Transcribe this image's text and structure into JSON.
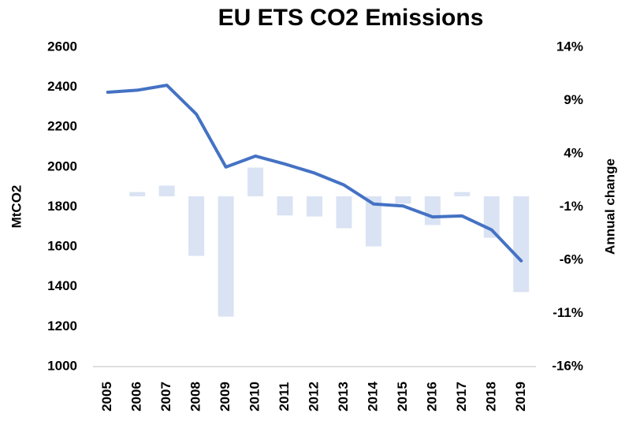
{
  "chart_data": {
    "type": "bar_line",
    "title": "EU ETS CO2 Emissions",
    "ylabel": "MtCO2",
    "y2label": "Annual change",
    "categories": [
      "2005",
      "2006",
      "2007",
      "2008",
      "2009",
      "2010",
      "2011",
      "2012",
      "2013",
      "2014",
      "2015",
      "2016",
      "2017",
      "2018",
      "2019"
    ],
    "series": [
      {
        "name": "Annual change",
        "type": "bar",
        "axis": "y2",
        "color": "#dae3f3",
        "values": [
          null,
          0.4,
          1.0,
          -5.6,
          -11.3,
          2.7,
          -1.8,
          -1.9,
          -3.0,
          -4.7,
          -0.7,
          -2.7,
          0.4,
          -3.9,
          -9.0
        ]
      },
      {
        "name": "MtCO2",
        "type": "line",
        "color": "#4472c4",
        "values": [
          2375,
          2385,
          2410,
          2265,
          2000,
          2055,
          2015,
          1970,
          1910,
          1815,
          1805,
          1750,
          1755,
          1685,
          1530
        ]
      }
    ],
    "ylim": [
      1000,
      2600
    ],
    "yticks": [
      1000,
      1200,
      1400,
      1600,
      1800,
      2000,
      2200,
      2400,
      2600
    ],
    "y2lim": [
      -16,
      14
    ],
    "y2ticks": [
      {
        "value": -16,
        "label": "-16%"
      },
      {
        "value": -11,
        "label": "-11%"
      },
      {
        "value": -6,
        "label": "-6%"
      },
      {
        "value": -1,
        "label": "-1%"
      },
      {
        "value": 4,
        "label": "4%"
      },
      {
        "value": 9,
        "label": "9%"
      },
      {
        "value": 14,
        "label": "14%"
      }
    ],
    "grid": false
  }
}
